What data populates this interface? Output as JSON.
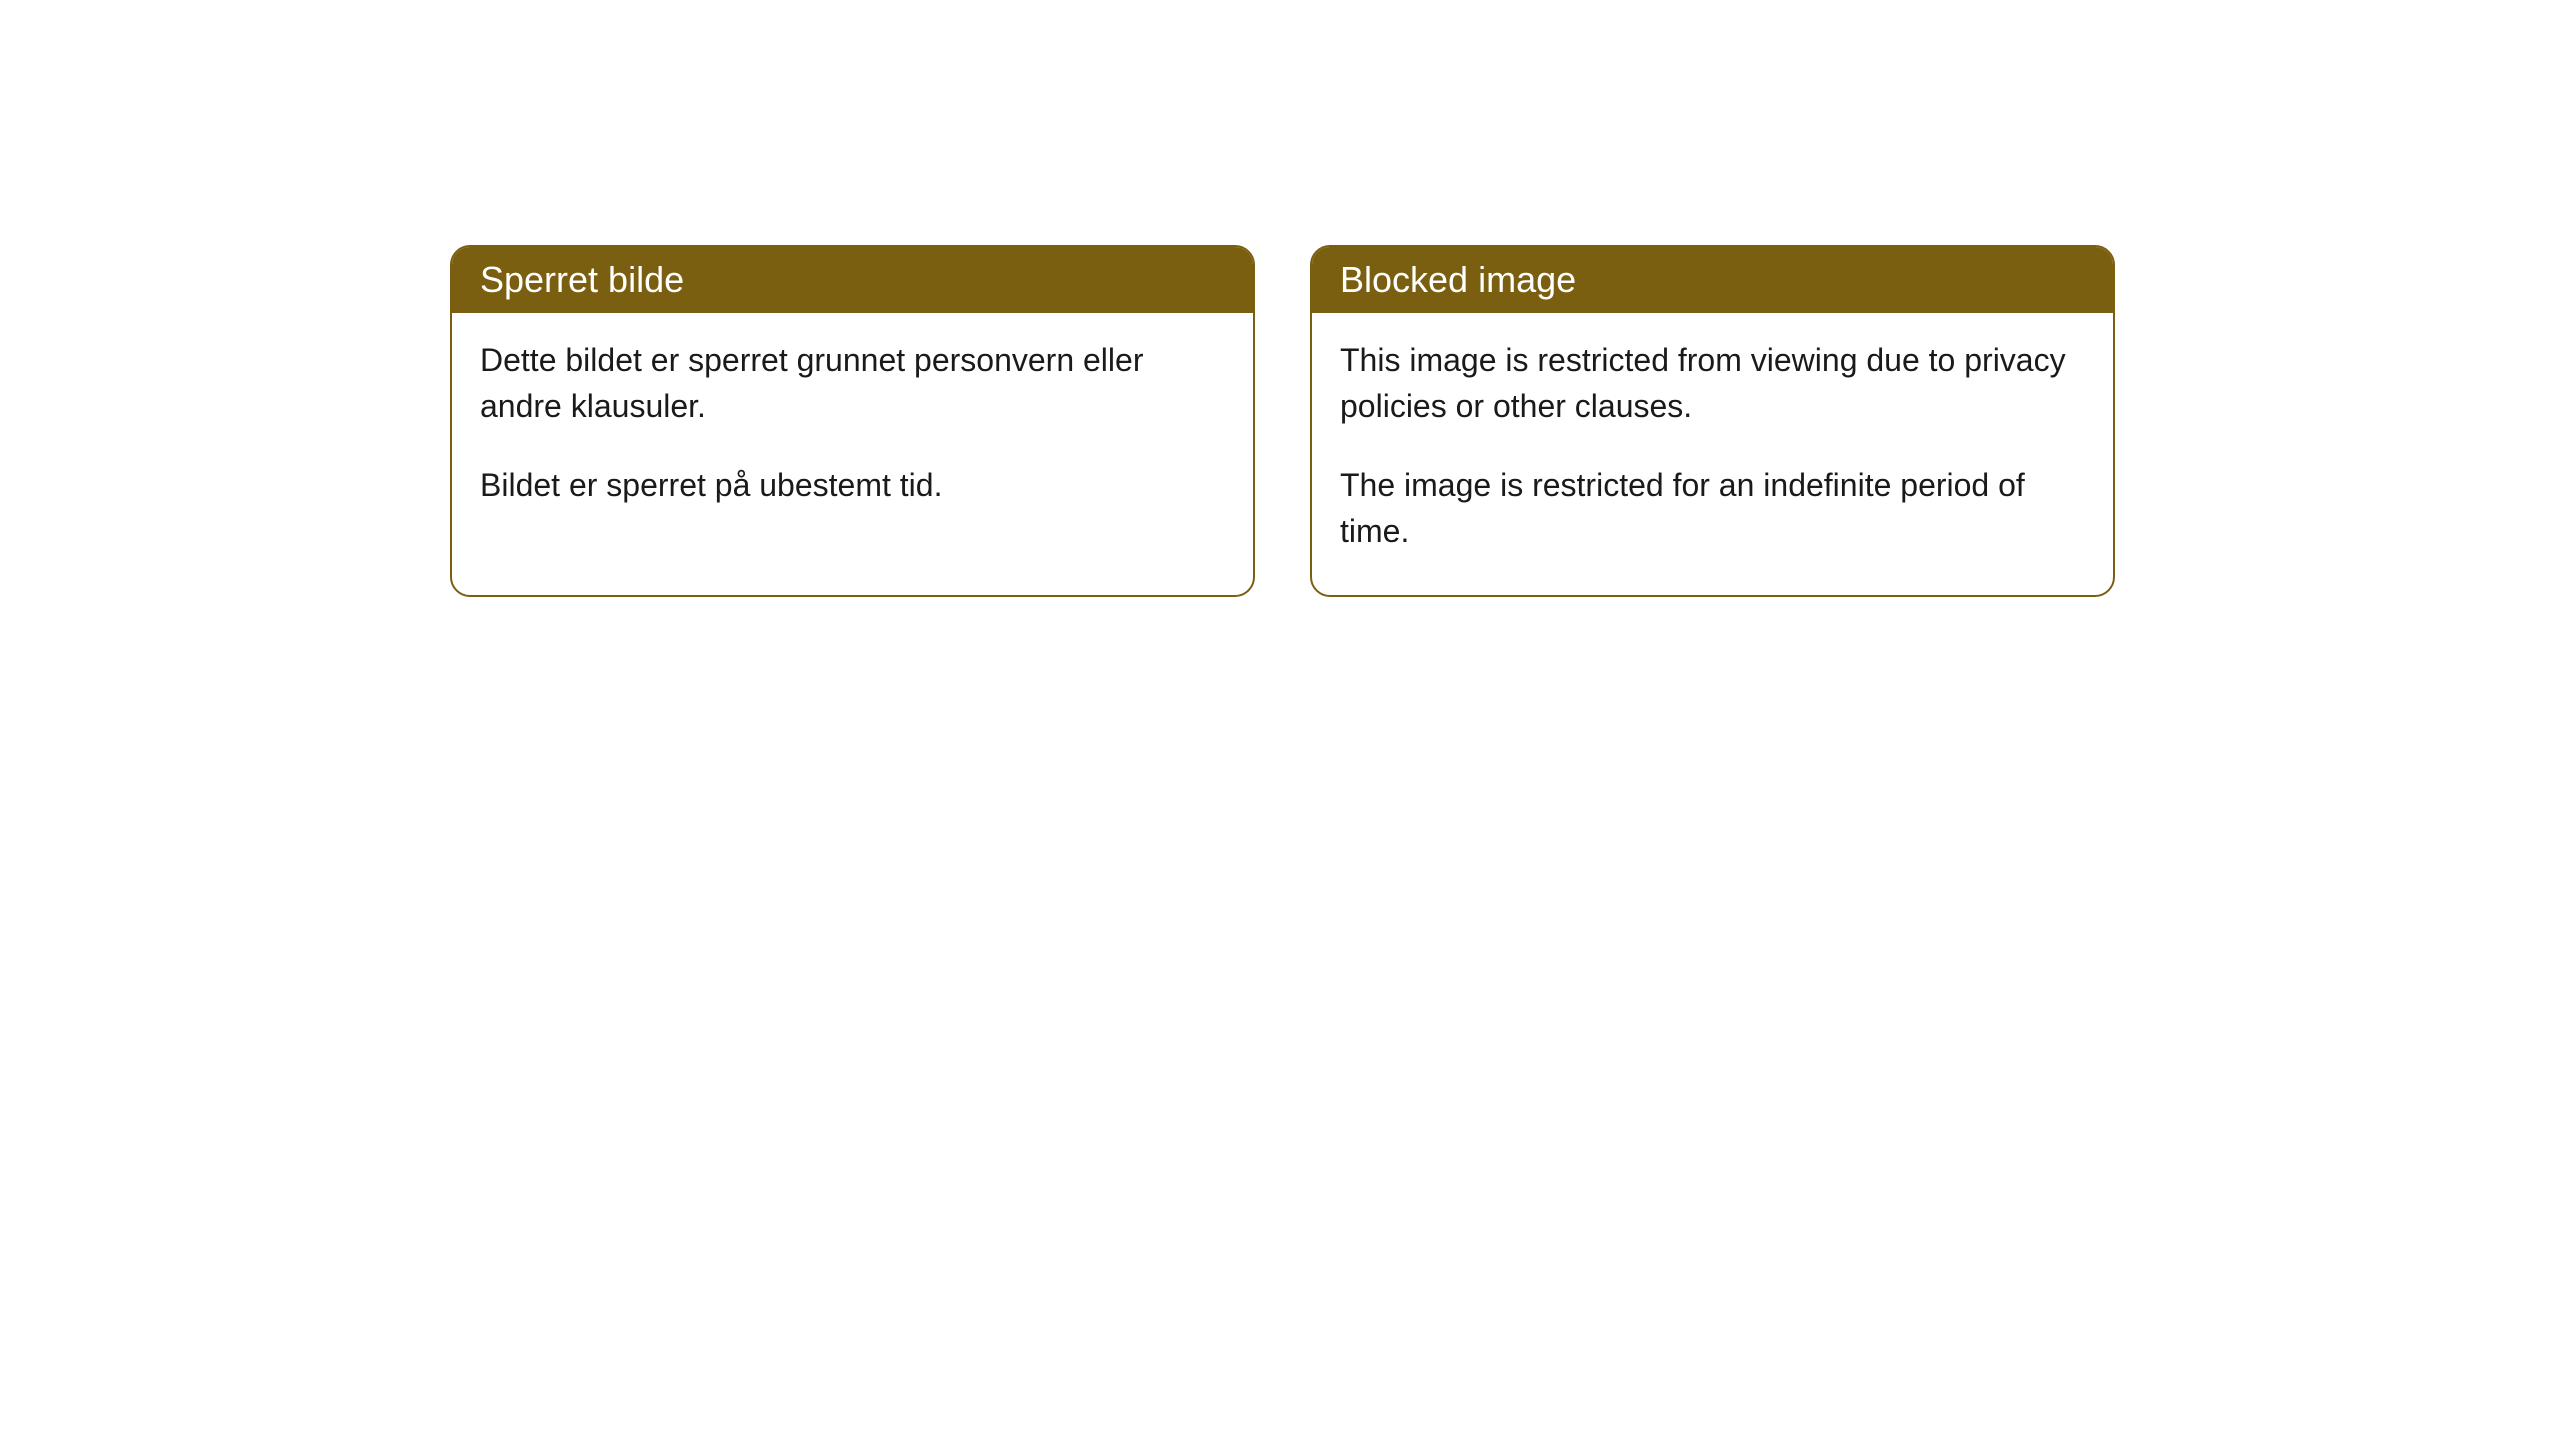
{
  "cards": [
    {
      "title": "Sperret bilde",
      "paragraph1": "Dette bildet er sperret grunnet personvern eller andre klausuler.",
      "paragraph2": "Bildet er sperret på ubestemt tid."
    },
    {
      "title": "Blocked image",
      "paragraph1": "This image is restricted from viewing due to privacy policies or other clauses.",
      "paragraph2": "The image is restricted for an indefinite period of time."
    }
  ],
  "styling": {
    "header_background": "#7a5f11",
    "header_text_color": "#ffffff",
    "border_color": "#7a5f11",
    "body_background": "#ffffff",
    "body_text_color": "#1a1a1a",
    "border_radius": 20,
    "header_fontsize": 36,
    "body_fontsize": 32
  }
}
